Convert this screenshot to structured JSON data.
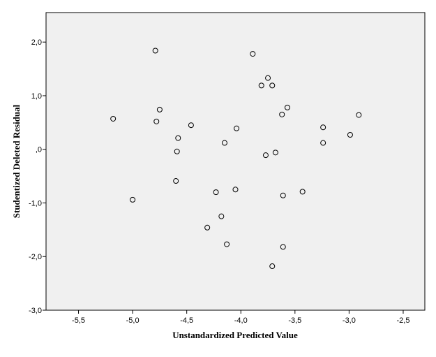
{
  "chart_data": {
    "type": "scatter",
    "title": "",
    "xlabel": "Unstandardized Predicted Value",
    "ylabel": "Studentized Deleted Residual",
    "xlim": [
      -5.8,
      -2.3
    ],
    "ylim": [
      -3.0,
      2.55
    ],
    "x_ticks": [
      {
        "value": -5.5,
        "label": "-5,5"
      },
      {
        "value": -5.0,
        "label": "-5,0"
      },
      {
        "value": -4.5,
        "label": "-4,5"
      },
      {
        "value": -4.0,
        "label": "-4,0"
      },
      {
        "value": -3.5,
        "label": "-3,5"
      },
      {
        "value": -3.0,
        "label": "-3,0"
      },
      {
        "value": -2.5,
        "label": "-2,5"
      }
    ],
    "y_ticks": [
      {
        "value": 2.0,
        "label": "2,0"
      },
      {
        "value": 1.0,
        "label": "1,0"
      },
      {
        "value": 0.0,
        "label": ",0"
      },
      {
        "value": -1.0,
        "label": "-1,0"
      },
      {
        "value": -2.0,
        "label": "-2,0"
      },
      {
        "value": -3.0,
        "label": "-3,0"
      }
    ],
    "grid": false,
    "legend": "none",
    "background_color": "#f0f0f0",
    "marker_style": "hollow circle",
    "marker_color": "#000000",
    "points": [
      {
        "x": -5.18,
        "y": 0.57
      },
      {
        "x": -5.0,
        "y": -0.94
      },
      {
        "x": -4.79,
        "y": 1.84
      },
      {
        "x": -4.78,
        "y": 0.52
      },
      {
        "x": -4.75,
        "y": 0.74
      },
      {
        "x": -4.6,
        "y": -0.59
      },
      {
        "x": -4.59,
        "y": -0.04
      },
      {
        "x": -4.58,
        "y": 0.21
      },
      {
        "x": -4.46,
        "y": 0.45
      },
      {
        "x": -4.31,
        "y": -1.46
      },
      {
        "x": -4.23,
        "y": -0.8
      },
      {
        "x": -4.18,
        "y": -1.25
      },
      {
        "x": -4.15,
        "y": 0.12
      },
      {
        "x": -4.13,
        "y": -1.77
      },
      {
        "x": -4.05,
        "y": -0.75
      },
      {
        "x": -4.04,
        "y": 0.39
      },
      {
        "x": -3.89,
        "y": 1.78
      },
      {
        "x": -3.81,
        "y": 1.19
      },
      {
        "x": -3.77,
        "y": -0.11
      },
      {
        "x": -3.75,
        "y": 1.33
      },
      {
        "x": -3.71,
        "y": 1.19
      },
      {
        "x": -3.71,
        "y": -2.18
      },
      {
        "x": -3.68,
        "y": -0.06
      },
      {
        "x": -3.62,
        "y": 0.65
      },
      {
        "x": -3.61,
        "y": -0.86
      },
      {
        "x": -3.61,
        "y": -1.82
      },
      {
        "x": -3.57,
        "y": 0.78
      },
      {
        "x": -3.43,
        "y": -0.79
      },
      {
        "x": -3.24,
        "y": 0.41
      },
      {
        "x": -3.24,
        "y": 0.12
      },
      {
        "x": -2.99,
        "y": 0.27
      },
      {
        "x": -2.91,
        "y": 0.64
      }
    ]
  }
}
